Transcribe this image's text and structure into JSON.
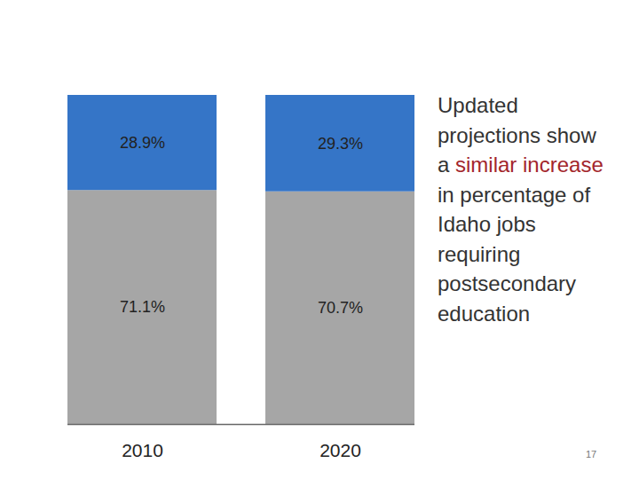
{
  "chart_data": {
    "type": "bar",
    "stacked": true,
    "categories": [
      "2010",
      "2020"
    ],
    "series": [
      {
        "color": "#a6a6a6",
        "values": [
          71.1,
          70.7
        ],
        "value_labels": [
          "71.1%",
          "70.7%"
        ]
      },
      {
        "color": "#3575c7",
        "values": [
          28.9,
          29.3
        ],
        "value_labels": [
          "28.9%",
          "29.3%"
        ]
      }
    ],
    "ylim": [
      0,
      100
    ],
    "yticks": [],
    "tick_labels": "x",
    "data_labels": true,
    "annotation": {
      "before": "Updated projections show a",
      "highlight": "similar increase",
      "after": "in percentage of Idaho jobs requiring postsecondary education"
    },
    "page_number": "17"
  }
}
